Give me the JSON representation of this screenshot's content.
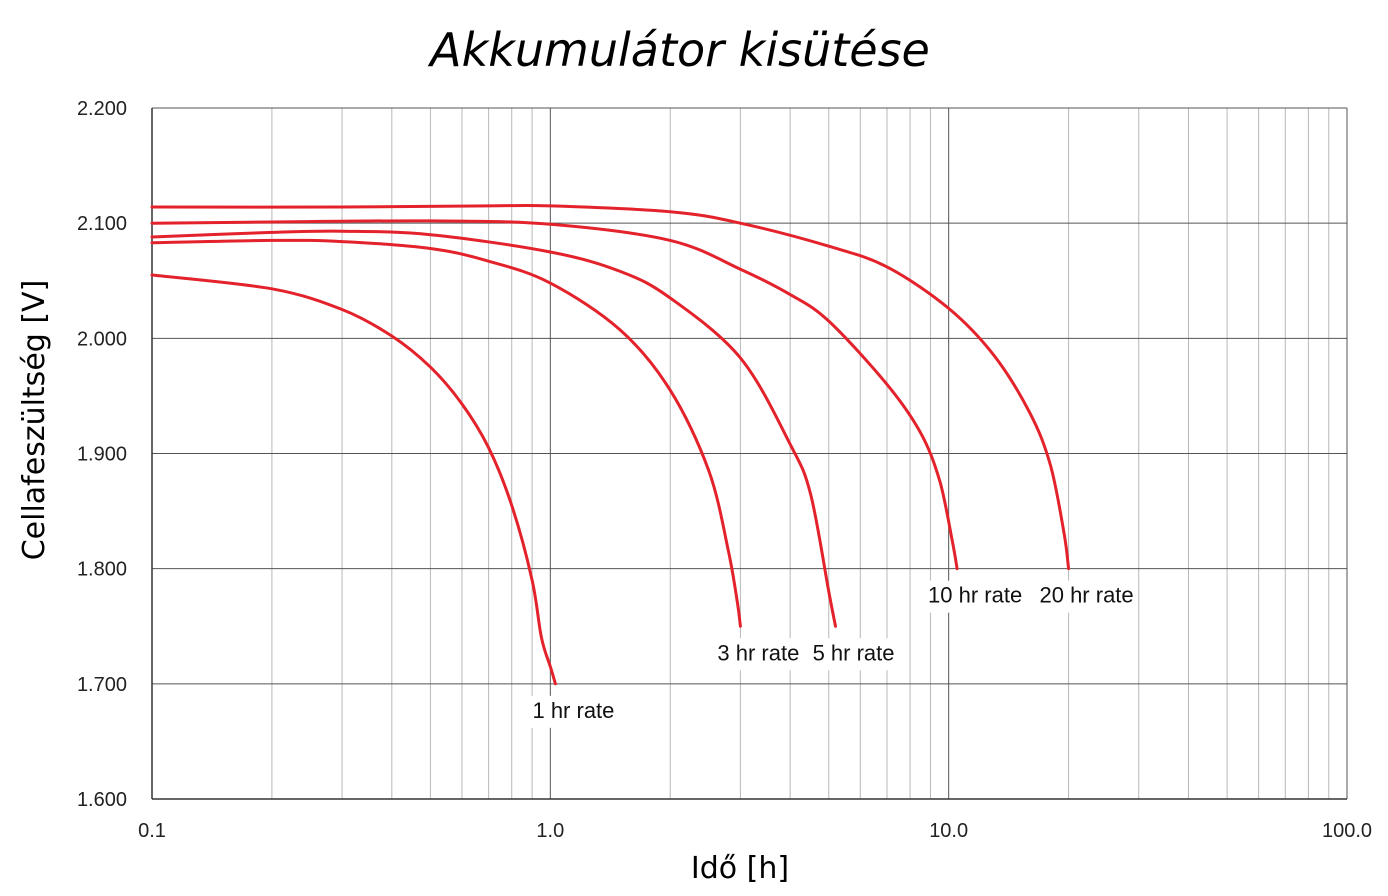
{
  "chart_data": {
    "type": "line",
    "title": "Akkumulátor kisütése",
    "xlabel": "Idő [h]",
    "ylabel": "Cellafeszültség [V]",
    "x_scale": "log",
    "xlim": [
      0.1,
      100
    ],
    "ylim": [
      1.6,
      2.2
    ],
    "x_ticks": [
      0.1,
      1,
      10,
      100
    ],
    "x_tick_labels": [
      "0.1",
      "1.0",
      "10.0",
      "100.0"
    ],
    "y_ticks": [
      1.6,
      1.7,
      1.8,
      1.9,
      2.0,
      2.1,
      2.2
    ],
    "y_tick_labels": [
      "1.600",
      "1.700",
      "1.800",
      "1.900",
      "2.000",
      "2.100",
      "2.200"
    ],
    "grid": true,
    "line_color": "#e3222b",
    "series": [
      {
        "name": "1 hr rate",
        "x": [
          0.1,
          0.2,
          0.3,
          0.4,
          0.5,
          0.6,
          0.7,
          0.8,
          0.9,
          0.95,
          1.0,
          1.03
        ],
        "y": [
          2.055,
          2.043,
          2.025,
          2.002,
          1.975,
          1.943,
          1.905,
          1.855,
          1.79,
          1.74,
          1.715,
          1.7
        ]
      },
      {
        "name": "3 hr rate",
        "x": [
          0.1,
          0.2,
          0.3,
          0.5,
          0.7,
          1.0,
          1.5,
          2.0,
          2.5,
          2.8,
          2.95,
          3.0
        ],
        "y": [
          2.083,
          2.085,
          2.084,
          2.078,
          2.067,
          2.048,
          2.007,
          1.955,
          1.885,
          1.815,
          1.77,
          1.75
        ]
      },
      {
        "name": "5 hr rate",
        "x": [
          0.1,
          0.2,
          0.3,
          0.5,
          1.0,
          1.5,
          2.0,
          3.0,
          4.0,
          4.5,
          5.0,
          5.2
        ],
        "y": [
          2.088,
          2.092,
          2.093,
          2.09,
          2.075,
          2.058,
          2.035,
          1.983,
          1.908,
          1.865,
          1.78,
          1.75
        ]
      },
      {
        "name": "10 hr rate",
        "x": [
          0.1,
          0.2,
          0.5,
          1.0,
          2.0,
          3.0,
          4.0,
          5.0,
          7.0,
          8.5,
          9.5,
          10.2,
          10.5
        ],
        "y": [
          2.1,
          2.101,
          2.102,
          2.099,
          2.085,
          2.06,
          2.038,
          2.015,
          1.96,
          1.918,
          1.876,
          1.825,
          1.8
        ]
      },
      {
        "name": "20 hr rate",
        "x": [
          0.1,
          0.3,
          0.7,
          1.0,
          2.0,
          3.0,
          5.0,
          7.0,
          10.0,
          13.0,
          16.0,
          18.0,
          19.5,
          20.0
        ],
        "y": [
          2.114,
          2.114,
          2.115,
          2.115,
          2.11,
          2.1,
          2.08,
          2.062,
          2.026,
          1.985,
          1.935,
          1.89,
          1.83,
          1.8
        ]
      }
    ]
  }
}
